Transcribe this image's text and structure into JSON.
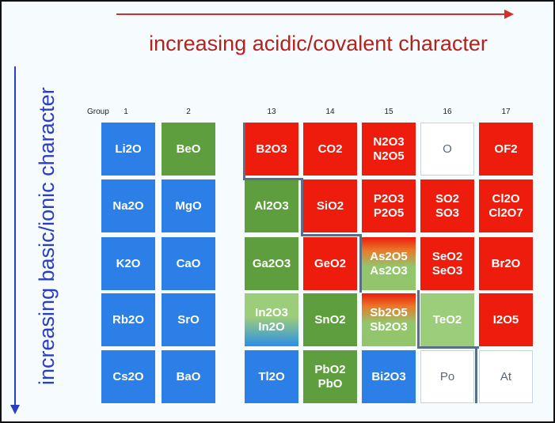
{
  "title_horizontal": "increasing acidic/covalent character",
  "title_vertical": "increasing basic/ionic character",
  "group_label": "Group",
  "groups": [
    "1",
    "2",
    "13",
    "14",
    "15",
    "16",
    "17"
  ],
  "colors": {
    "basic": "#2d7fe8",
    "amphoteric": "#5e9e3e",
    "weak": "#9ccd7a",
    "acidic": "#ee1c0c",
    "none": "#ffffff"
  },
  "rows": [
    [
      {
        "t": "Li2O",
        "c": "b"
      },
      {
        "t": "BeO",
        "c": "g"
      },
      {
        "t": "B2O3",
        "c": "r"
      },
      {
        "t": "CO2",
        "c": "r"
      },
      {
        "t": "N2O3\nN2O5",
        "c": "r"
      },
      {
        "t": "O",
        "c": "w"
      },
      {
        "t": "OF2",
        "c": "r"
      }
    ],
    [
      {
        "t": "Na2O",
        "c": "b"
      },
      {
        "t": "MgO",
        "c": "b"
      },
      {
        "t": "Al2O3",
        "c": "g"
      },
      {
        "t": "SiO2",
        "c": "r"
      },
      {
        "t": "P2O3\nP2O5",
        "c": "r"
      },
      {
        "t": "SO2\nSO3",
        "c": "r"
      },
      {
        "t": "Cl2O\nCl2O7",
        "c": "r"
      }
    ],
    [
      {
        "t": "K2O",
        "c": "b"
      },
      {
        "t": "CaO",
        "c": "b"
      },
      {
        "t": "Ga2O3",
        "c": "g"
      },
      {
        "t": "GeO2",
        "c": "r"
      },
      {
        "t": "As2O5\nAs2O3",
        "c": "grad-ro"
      },
      {
        "t": "SeO2\nSeO3",
        "c": "r"
      },
      {
        "t": "Br2O",
        "c": "r"
      }
    ],
    [
      {
        "t": "Rb2O",
        "c": "b"
      },
      {
        "t": "SrO",
        "c": "b"
      },
      {
        "t": "In2O3\nIn2O",
        "c": "grad-gb"
      },
      {
        "t": "SnO2",
        "c": "g"
      },
      {
        "t": "Sb2O5\nSb2O3",
        "c": "grad-ro"
      },
      {
        "t": "TeO2",
        "c": "lg"
      },
      {
        "t": "I2O5",
        "c": "r"
      }
    ],
    [
      {
        "t": "Cs2O",
        "c": "b"
      },
      {
        "t": "BaO",
        "c": "b"
      },
      {
        "t": "Tl2O",
        "c": "b"
      },
      {
        "t": "PbO2\nPbO",
        "c": "g"
      },
      {
        "t": "Bi2O3",
        "c": "b"
      },
      {
        "t": "Po",
        "c": "w"
      },
      {
        "t": "At",
        "c": "w"
      }
    ]
  ]
}
